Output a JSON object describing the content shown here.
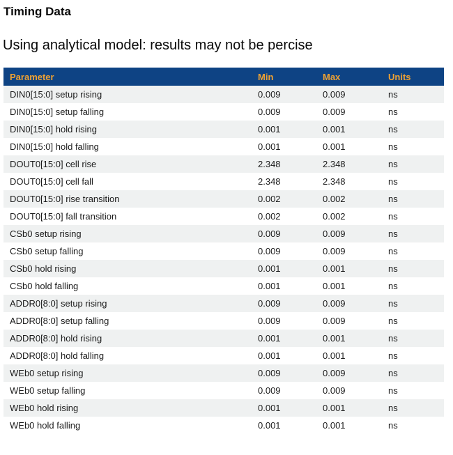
{
  "page": {
    "title": "Timing Data",
    "subtitle": "Using analytical model: results may not be percise"
  },
  "colors": {
    "header_bg": "#0e4384",
    "header_text": "#f0a232",
    "row_alt_bg": "#eff1f1"
  },
  "table": {
    "columns": [
      "Parameter",
      "Min",
      "Max",
      "Units"
    ],
    "rows": [
      [
        "DIN0[15:0] setup rising",
        "0.009",
        "0.009",
        "ns"
      ],
      [
        "DIN0[15:0] setup falling",
        "0.009",
        "0.009",
        "ns"
      ],
      [
        "DIN0[15:0] hold rising",
        "0.001",
        "0.001",
        "ns"
      ],
      [
        "DIN0[15:0] hold falling",
        "0.001",
        "0.001",
        "ns"
      ],
      [
        "DOUT0[15:0] cell rise",
        "2.348",
        "2.348",
        "ns"
      ],
      [
        "DOUT0[15:0] cell fall",
        "2.348",
        "2.348",
        "ns"
      ],
      [
        "DOUT0[15:0] rise transition",
        "0.002",
        "0.002",
        "ns"
      ],
      [
        "DOUT0[15:0] fall transition",
        "0.002",
        "0.002",
        "ns"
      ],
      [
        "CSb0 setup rising",
        "0.009",
        "0.009",
        "ns"
      ],
      [
        "CSb0 setup falling",
        "0.009",
        "0.009",
        "ns"
      ],
      [
        "CSb0 hold rising",
        "0.001",
        "0.001",
        "ns"
      ],
      [
        "CSb0 hold falling",
        "0.001",
        "0.001",
        "ns"
      ],
      [
        "ADDR0[8:0] setup rising",
        "0.009",
        "0.009",
        "ns"
      ],
      [
        "ADDR0[8:0] setup falling",
        "0.009",
        "0.009",
        "ns"
      ],
      [
        "ADDR0[8:0] hold rising",
        "0.001",
        "0.001",
        "ns"
      ],
      [
        "ADDR0[8:0] hold falling",
        "0.001",
        "0.001",
        "ns"
      ],
      [
        "WEb0 setup rising",
        "0.009",
        "0.009",
        "ns"
      ],
      [
        "WEb0 setup falling",
        "0.009",
        "0.009",
        "ns"
      ],
      [
        "WEb0 hold rising",
        "0.001",
        "0.001",
        "ns"
      ],
      [
        "WEb0 hold falling",
        "0.001",
        "0.001",
        "ns"
      ]
    ]
  }
}
